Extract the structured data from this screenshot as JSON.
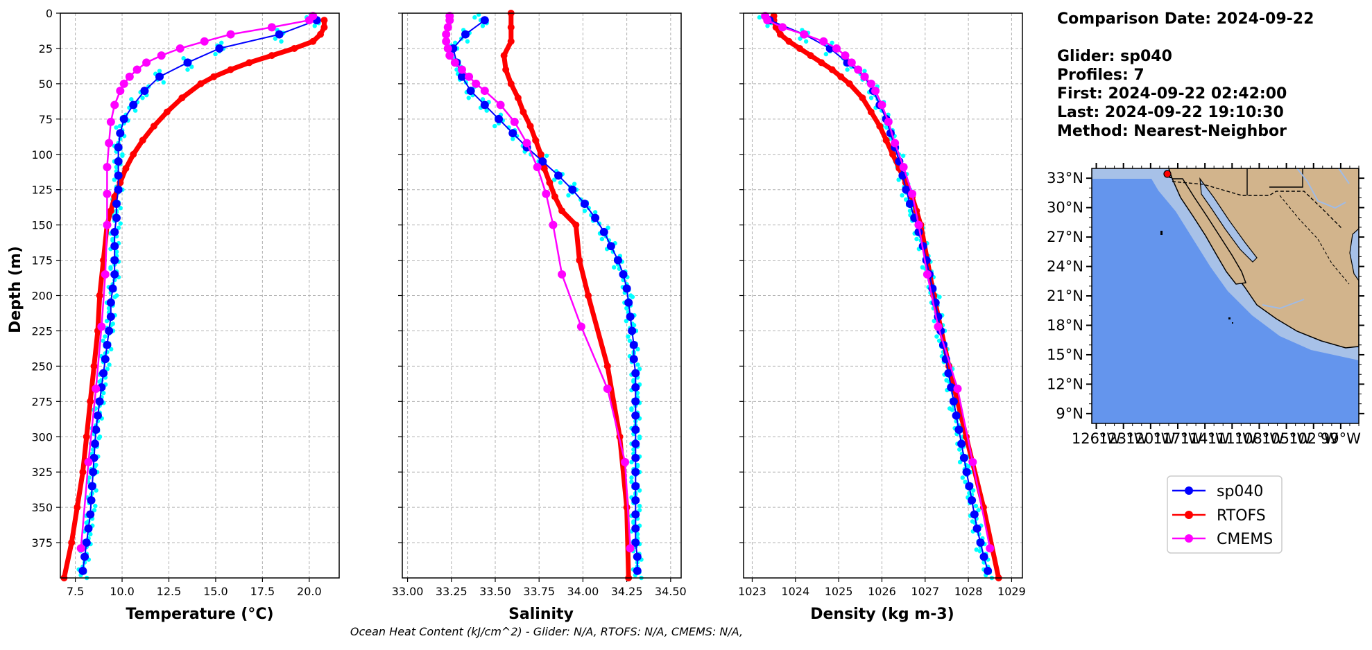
{
  "info": {
    "comparison": "Comparison Date: 2024-09-22",
    "glider": "Glider: sp040",
    "profiles": "Profiles: 7",
    "first": "First: 2024-09-22 02:42:00",
    "last": "Last: 2024-09-22 19:10:30",
    "method": "Method: Nearest-Neighbor"
  },
  "footer": "Ocean Heat Content (kJ/cm^2) - Glider: N/A,  RTOFS: N/A,  CMEMS: N/A,",
  "colors": {
    "glider": "#0000ff",
    "glider_raw": "#00ffff",
    "rtofs": "#ff0000",
    "cmems": "#ff00ff",
    "ocean": "#6495ed",
    "shelf": "#a7c1e8",
    "land": "#d2b48c",
    "grid": "#b0b0b0"
  },
  "legend": [
    "sp040",
    "RTOFS",
    "CMEMS"
  ],
  "map": {
    "lat_labels": [
      "33°N",
      "30°N",
      "27°N",
      "24°N",
      "21°N",
      "18°N",
      "15°N",
      "12°N",
      "9°N"
    ],
    "lon_labels": [
      "126°W",
      "123°W",
      "120°W",
      "117°W",
      "114°W",
      "111°W",
      "108°W",
      "105°W",
      "102°W",
      "99°W"
    ],
    "glider_marker": {
      "lon": -119.6,
      "lat": 33.3
    }
  },
  "chart_data": [
    {
      "type": "line",
      "xlabel": "Temperature (°C)",
      "ylabel": "Depth (m)",
      "xlim": [
        6.7,
        21.6
      ],
      "ylim": [
        400,
        0
      ],
      "x_ticks": [
        "7.5",
        "10.0",
        "12.5",
        "15.0",
        "17.5",
        "20.0"
      ],
      "y_ticks": [
        "0",
        "25",
        "50",
        "75",
        "100",
        "125",
        "150",
        "175",
        "200",
        "225",
        "250",
        "275",
        "300",
        "325",
        "350",
        "375"
      ],
      "grid": true,
      "series": [
        {
          "name": "sp040",
          "depth": [
            5,
            15,
            25,
            35,
            45,
            55,
            65,
            75,
            85,
            95,
            105,
            115,
            125,
            135,
            145,
            155,
            165,
            175,
            185,
            195,
            205,
            215,
            225,
            235,
            245,
            255,
            265,
            275,
            285,
            295,
            305,
            315,
            325,
            335,
            345,
            355,
            365,
            375,
            385,
            395
          ],
          "values": [
            20.4,
            18.4,
            15.2,
            13.5,
            12.0,
            11.2,
            10.6,
            10.1,
            9.9,
            9.8,
            9.8,
            9.8,
            9.8,
            9.7,
            9.7,
            9.6,
            9.6,
            9.6,
            9.6,
            9.5,
            9.4,
            9.4,
            9.3,
            9.2,
            9.1,
            9.0,
            8.9,
            8.8,
            8.7,
            8.6,
            8.55,
            8.5,
            8.45,
            8.4,
            8.35,
            8.3,
            8.2,
            8.1,
            8.0,
            7.9
          ]
        },
        {
          "name": "RTOFS",
          "depth": [
            5,
            10,
            15,
            20,
            25,
            30,
            35,
            40,
            45,
            50,
            60,
            70,
            80,
            90,
            100,
            110,
            120,
            130,
            140,
            150,
            175,
            200,
            225,
            250,
            275,
            300,
            325,
            350,
            375,
            400
          ],
          "values": [
            20.8,
            20.8,
            20.6,
            20.2,
            19.2,
            18.0,
            16.8,
            15.8,
            14.9,
            14.2,
            13.2,
            12.4,
            11.7,
            11.1,
            10.6,
            10.2,
            9.9,
            9.6,
            9.4,
            9.2,
            9.0,
            8.8,
            8.7,
            8.5,
            8.3,
            8.1,
            7.9,
            7.6,
            7.3,
            6.9
          ]
        },
        {
          "name": "CMEMS",
          "depth": [
            2,
            5,
            10,
            15,
            20,
            25,
            30,
            35,
            40,
            45,
            50,
            55,
            65,
            77,
            92,
            109,
            128,
            150,
            185,
            222,
            266,
            318,
            379
          ],
          "values": [
            20.2,
            20.0,
            18.0,
            15.8,
            14.4,
            13.1,
            12.1,
            11.3,
            10.8,
            10.4,
            10.1,
            9.9,
            9.6,
            9.4,
            9.3,
            9.2,
            9.2,
            9.2,
            9.1,
            8.9,
            8.6,
            8.2,
            7.8
          ]
        }
      ]
    },
    {
      "type": "line",
      "xlabel": "Salinity",
      "ylabel": "",
      "xlim": [
        32.97,
        34.56
      ],
      "ylim": [
        400,
        0
      ],
      "x_ticks": [
        "33.00",
        "33.25",
        "33.50",
        "33.75",
        "34.00",
        "34.25",
        "34.50"
      ],
      "y_ticks": [],
      "grid": true,
      "series": [
        {
          "name": "sp040",
          "depth": [
            5,
            15,
            25,
            35,
            45,
            55,
            65,
            75,
            85,
            95,
            105,
            115,
            125,
            135,
            145,
            155,
            165,
            175,
            185,
            195,
            205,
            215,
            225,
            235,
            245,
            255,
            265,
            275,
            285,
            295,
            305,
            315,
            325,
            335,
            345,
            355,
            365,
            375,
            385,
            395
          ],
          "values": [
            33.44,
            33.33,
            33.26,
            33.28,
            33.31,
            33.36,
            33.44,
            33.52,
            33.6,
            33.68,
            33.77,
            33.86,
            33.94,
            34.01,
            34.07,
            34.12,
            34.16,
            34.2,
            34.23,
            34.25,
            34.26,
            34.27,
            34.28,
            34.29,
            34.29,
            34.3,
            34.3,
            34.3,
            34.3,
            34.3,
            34.3,
            34.3,
            34.3,
            34.3,
            34.3,
            34.3,
            34.3,
            34.3,
            34.31,
            34.31
          ]
        },
        {
          "name": "RTOFS",
          "depth": [
            0,
            10,
            20,
            30,
            40,
            50,
            60,
            70,
            80,
            90,
            100,
            110,
            120,
            130,
            140,
            150,
            175,
            200,
            250,
            300,
            350,
            400
          ],
          "values": [
            33.59,
            33.59,
            33.59,
            33.55,
            33.56,
            33.59,
            33.63,
            33.66,
            33.7,
            33.73,
            33.76,
            33.78,
            33.81,
            33.84,
            33.88,
            33.96,
            33.98,
            34.03,
            34.14,
            34.21,
            34.25,
            34.26
          ]
        },
        {
          "name": "CMEMS",
          "depth": [
            2,
            5,
            10,
            15,
            20,
            25,
            30,
            35,
            40,
            45,
            50,
            55,
            65,
            77,
            92,
            109,
            128,
            150,
            185,
            222,
            266,
            318,
            379
          ],
          "values": [
            33.24,
            33.24,
            33.23,
            33.22,
            33.22,
            33.23,
            33.24,
            33.27,
            33.31,
            33.35,
            33.39,
            33.44,
            33.53,
            33.61,
            33.68,
            33.74,
            33.79,
            33.83,
            33.88,
            33.99,
            34.14,
            34.24,
            34.27
          ]
        }
      ]
    },
    {
      "type": "line",
      "xlabel": "Density (kg m-3)",
      "ylabel": "",
      "xlim": [
        1022.8,
        1029.25
      ],
      "ylim": [
        400,
        0
      ],
      "x_ticks": [
        "1023",
        "1024",
        "1025",
        "1026",
        "1027",
        "1028",
        "1029"
      ],
      "y_ticks": [],
      "grid": true,
      "series": [
        {
          "name": "sp040",
          "depth": [
            5,
            15,
            25,
            35,
            45,
            55,
            65,
            75,
            85,
            95,
            105,
            115,
            125,
            135,
            145,
            155,
            165,
            175,
            185,
            195,
            205,
            215,
            225,
            235,
            245,
            255,
            265,
            275,
            285,
            295,
            305,
            315,
            325,
            335,
            345,
            355,
            365,
            375,
            385,
            395
          ],
          "values": [
            1023.4,
            1024.2,
            1024.8,
            1025.2,
            1025.6,
            1025.8,
            1025.95,
            1026.1,
            1026.2,
            1026.3,
            1026.4,
            1026.48,
            1026.56,
            1026.65,
            1026.75,
            1026.85,
            1026.95,
            1027.03,
            1027.1,
            1027.17,
            1027.24,
            1027.3,
            1027.36,
            1027.42,
            1027.48,
            1027.54,
            1027.6,
            1027.66,
            1027.72,
            1027.78,
            1027.84,
            1027.9,
            1027.96,
            1028.02,
            1028.08,
            1028.14,
            1028.2,
            1028.28,
            1028.36,
            1028.45
          ]
        },
        {
          "name": "RTOFS",
          "depth": [
            2,
            5,
            10,
            15,
            20,
            25,
            30,
            35,
            40,
            45,
            50,
            60,
            70,
            80,
            90,
            100,
            110,
            120,
            130,
            140,
            150,
            175,
            200,
            250,
            300,
            350,
            400
          ],
          "values": [
            1023.5,
            1023.5,
            1023.55,
            1023.65,
            1023.85,
            1024.1,
            1024.35,
            1024.6,
            1024.85,
            1025.05,
            1025.25,
            1025.55,
            1025.75,
            1025.95,
            1026.1,
            1026.25,
            1026.4,
            1026.55,
            1026.7,
            1026.8,
            1026.9,
            1027.05,
            1027.2,
            1027.55,
            1027.95,
            1028.35,
            1028.7
          ]
        },
        {
          "name": "CMEMS",
          "depth": [
            2,
            5,
            10,
            15,
            20,
            25,
            30,
            35,
            40,
            45,
            50,
            55,
            65,
            77,
            92,
            109,
            128,
            150,
            185,
            222,
            266,
            318,
            379
          ],
          "values": [
            1023.3,
            1023.35,
            1023.7,
            1024.2,
            1024.65,
            1024.95,
            1025.15,
            1025.3,
            1025.45,
            1025.6,
            1025.75,
            1025.85,
            1026.0,
            1026.15,
            1026.3,
            1026.5,
            1026.7,
            1026.85,
            1027.05,
            1027.3,
            1027.75,
            1028.1,
            1028.5
          ]
        }
      ]
    }
  ]
}
